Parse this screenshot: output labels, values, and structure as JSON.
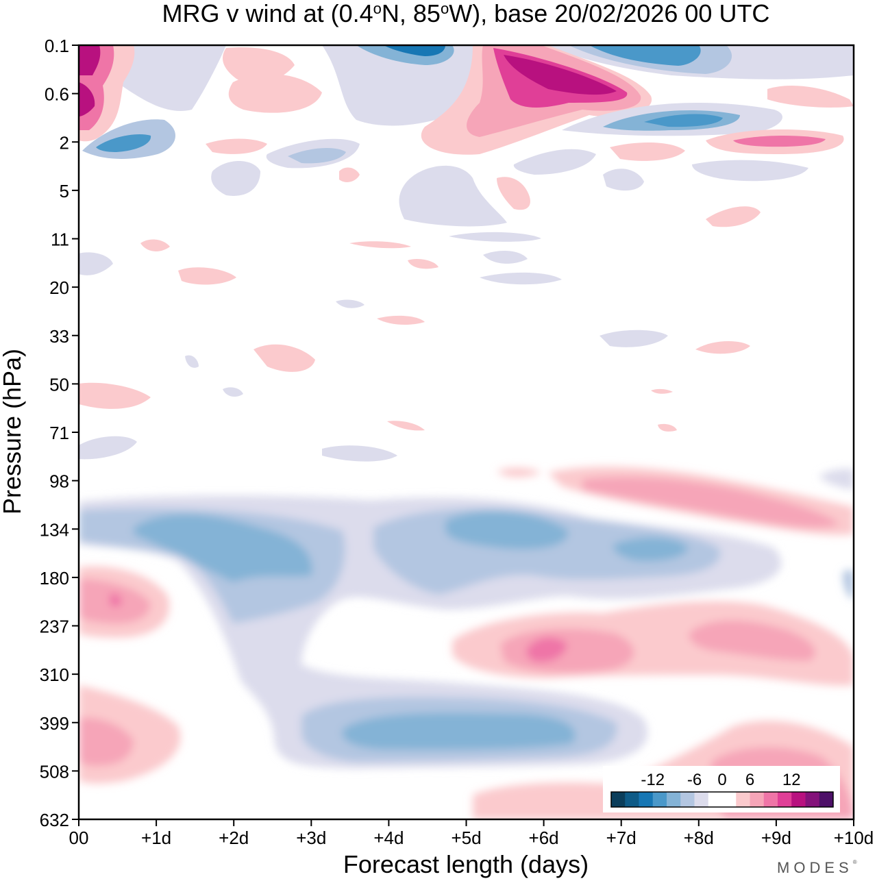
{
  "chart_data": {
    "type": "heatmap",
    "title": "MRG v wind at (0.4°N, 85°W),  base 20/02/2026  00 UTC",
    "title_parts": {
      "prefix": "MRG v wind at (0.4",
      "deg1": "o",
      "mid": "N, 85",
      "deg2": "o",
      "suffix": "W),  base 20/02/2026  00 UTC"
    },
    "xlabel": "Forecast length (days)",
    "ylabel": "Pressure (hPa)",
    "x_ticks": [
      "00",
      "+1d",
      "+2d",
      "+3d",
      "+4d",
      "+5d",
      "+6d",
      "+7d",
      "+8d",
      "+9d",
      "+10d"
    ],
    "y_ticks": [
      "0.1",
      "0.6",
      "2",
      "5",
      "11",
      "20",
      "33",
      "50",
      "71",
      "98",
      "134",
      "180",
      "237",
      "310",
      "399",
      "508",
      "632"
    ],
    "xlim": [
      0,
      10
    ],
    "ylim": [
      0.1,
      632
    ],
    "colorbar": {
      "tick_labels": [
        "-12",
        "-6",
        "0",
        "6",
        "12"
      ],
      "levels": [
        -16,
        -14,
        -12,
        -10,
        -8,
        -6,
        -4,
        -2,
        2,
        4,
        6,
        8,
        10,
        12,
        14,
        16
      ],
      "colors": [
        "#0b3e5b",
        "#0e5b87",
        "#1777b4",
        "#4a98c9",
        "#84b3d6",
        "#b3c6e1",
        "#dcdcec",
        "#ffffff",
        "#ffffff",
        "#fbcacd",
        "#f6a5b8",
        "#ef75a7",
        "#e03f97",
        "#b8117f",
        "#84127a",
        "#4d1068"
      ]
    },
    "features": [
      {
        "kind": "neg",
        "peak": -14,
        "day": 4.4,
        "p": 0.1
      },
      {
        "kind": "neg",
        "peak": -10,
        "day": 7.5,
        "p": 0.15
      },
      {
        "kind": "pos",
        "peak": 14,
        "day": 6.3,
        "p": 0.35
      },
      {
        "kind": "pos",
        "peak": 15,
        "day": 0.05,
        "p": 0.2
      },
      {
        "kind": "pos",
        "peak": 12,
        "day": 0.05,
        "p": 0.6
      },
      {
        "kind": "neg",
        "peak": -10,
        "day": 8.0,
        "p": 1.5
      },
      {
        "kind": "neg",
        "peak": -10,
        "day": 0.5,
        "p": 2.5
      },
      {
        "kind": "pos",
        "peak": 10,
        "day": 9.3,
        "p": 2.2
      },
      {
        "kind": "neg",
        "peak": -8,
        "day": 2.4,
        "p": 150
      },
      {
        "kind": "neg",
        "peak": -8,
        "day": 5.0,
        "p": 140
      },
      {
        "kind": "neg",
        "peak": -8,
        "day": 7.5,
        "p": 160
      },
      {
        "kind": "pos",
        "peak": 8,
        "day": 0.5,
        "p": 200
      },
      {
        "kind": "pos",
        "peak": 8,
        "day": 6.0,
        "p": 270
      },
      {
        "kind": "pos",
        "peak": 6,
        "day": 8.6,
        "p": 250
      },
      {
        "kind": "neg",
        "peak": -8,
        "day": 4.7,
        "p": 400
      },
      {
        "kind": "pos",
        "peak": 6,
        "day": 0.4,
        "p": 400
      },
      {
        "kind": "pos",
        "peak": 6,
        "day": 9.0,
        "p": 560
      },
      {
        "kind": "pos",
        "peak": 6,
        "day": 8.0,
        "p": 130
      }
    ]
  },
  "branding": {
    "name": "MODES",
    "mark": "®"
  }
}
